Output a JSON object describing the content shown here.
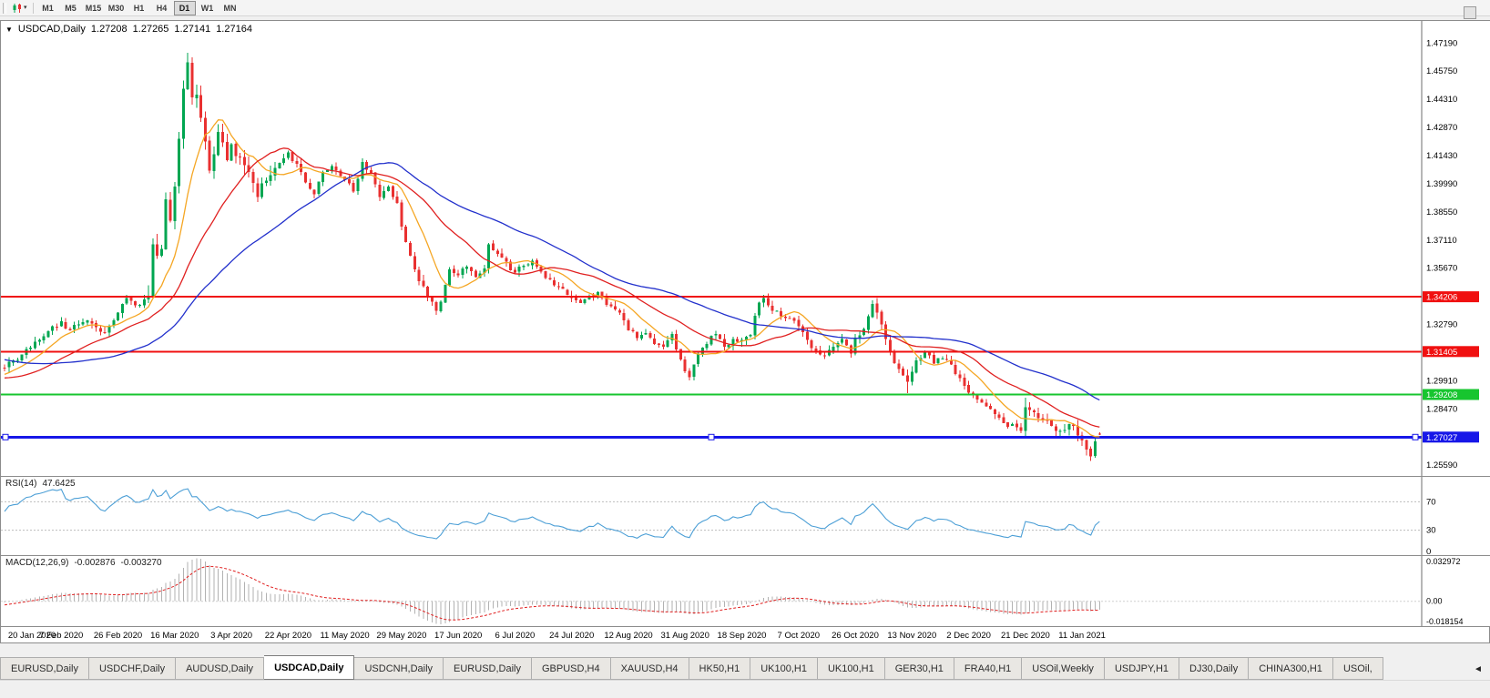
{
  "icons": {
    "collapse_triangle": "▼",
    "dropdown_caret": "▾",
    "tab_scroll_left": "◄"
  },
  "toolbar": {
    "timeframes": [
      {
        "label": "M1",
        "active": false
      },
      {
        "label": "M5",
        "active": false
      },
      {
        "label": "M15",
        "active": false
      },
      {
        "label": "M30",
        "active": false
      },
      {
        "label": "H1",
        "active": false
      },
      {
        "label": "H4",
        "active": false
      },
      {
        "label": "D1",
        "active": true
      },
      {
        "label": "W1",
        "active": false
      },
      {
        "label": "MN",
        "active": false
      }
    ]
  },
  "chart": {
    "title": "USDCAD,Daily",
    "open": "1.27208",
    "high": "1.27265",
    "low": "1.27141",
    "close": "1.27164",
    "price_axis": [
      "1.47190",
      "1.45750",
      "1.44310",
      "1.42870",
      "1.41430",
      "1.39990",
      "1.38550",
      "1.37110",
      "1.35670",
      "1.34230",
      "1.32790",
      "1.31350",
      "1.29910",
      "1.28470",
      "1.27030",
      "1.25590"
    ],
    "date_axis": [
      "20 Jan 2020",
      "7 Feb 2020",
      "26 Feb 2020",
      "16 Mar 2020",
      "3 Apr 2020",
      "22 Apr 2020",
      "11 May 2020",
      "29 May 2020",
      "17 Jun 2020",
      "6 Jul 2020",
      "24 Jul 2020",
      "12 Aug 2020",
      "31 Aug 2020",
      "18 Sep 2020",
      "7 Oct 2020",
      "26 Oct 2020",
      "13 Nov 2020",
      "2 Dec 2020",
      "21 Dec 2020",
      "11 Jan 2021"
    ],
    "hlines": [
      {
        "price": 1.34206,
        "label": "1.34206",
        "color": "#F01010",
        "width": 2,
        "handles": false
      },
      {
        "price": 1.31405,
        "label": "1.31405",
        "color": "#F01010",
        "width": 2,
        "handles": false
      },
      {
        "price": 1.29208,
        "label": "1.29208",
        "color": "#17C52F",
        "width": 2,
        "handles": false
      },
      {
        "price": 1.27027,
        "label": "1.27027",
        "color": "#1717E8",
        "width": 3,
        "handles": true
      }
    ]
  },
  "rsi": {
    "name": "RSI(14)",
    "value": "47.6425",
    "color": "#4C9FD6",
    "levels": [
      {
        "value": 70,
        "label": "70",
        "dashed": true
      },
      {
        "value": 30,
        "label": "30",
        "dashed": true
      },
      {
        "value": 0,
        "label": "0",
        "dashed": false
      }
    ]
  },
  "macd": {
    "name": "MACD(12,26,9)",
    "value_main": "-0.002876",
    "value_signal": "-0.003270",
    "axis_max": "0.032972",
    "axis_zero": "0.00",
    "axis_min": "-0.018154",
    "histogram_color": "#b2b2b2",
    "signal_color": "#E02020"
  },
  "tabs": {
    "active_index": 3,
    "items": [
      "EURUSD,Daily",
      "USDCHF,Daily",
      "AUDUSD,Daily",
      "USDCAD,Daily",
      "USDCNH,Daily",
      "EURUSD,Daily",
      "GBPUSD,H4",
      "XAUUSD,H4",
      "HK50,H1",
      "UK100,H1",
      "UK100,H1",
      "GER30,H1",
      "FRA40,H1",
      "USOil,Weekly",
      "USDJPY,H1",
      "DJ30,Daily",
      "CHINA300,H1",
      "USOil,"
    ]
  },
  "chart_data": {
    "type": "candlestick",
    "symbol": "USDCAD",
    "timeframe": "Daily",
    "title": "USDCAD,Daily",
    "bar_count": 252,
    "seed": 11,
    "noise": 0.0016,
    "price_max": 1.4832,
    "price_min": 1.2504,
    "bull_color": "#00A651",
    "bear_color": "#E93030",
    "last_ohlc": [
      1.27208,
      1.27265,
      1.27141,
      1.27164
    ],
    "extremes": [
      [
        42,
        "h",
        1.4669
      ],
      [
        157,
        "l",
        1.2994
      ],
      [
        207,
        "l",
        1.2928
      ],
      [
        234,
        "h",
        1.2905
      ],
      [
        249,
        "l",
        1.2589
      ]
    ],
    "moving_averages": [
      {
        "period": 10,
        "color": "#F5A623"
      },
      {
        "period": 25,
        "color": "#E02020"
      },
      {
        "period": 50,
        "color": "#2230CC"
      }
    ],
    "rsi_period": 14,
    "macd_params": [
      12,
      26,
      9
    ],
    "support_resistance_levels": [
      1.34206,
      1.31405,
      1.29208,
      1.27027
    ],
    "anchors": [
      [
        -50,
        1.329
      ],
      [
        -44,
        1.3255
      ],
      [
        -38,
        1.321
      ],
      [
        -32,
        1.3155
      ],
      [
        -26,
        1.3085
      ],
      [
        -20,
        1.3
      ],
      [
        -15,
        1.2965
      ],
      [
        -10,
        1.2975
      ],
      [
        -6,
        1.301
      ],
      [
        -3,
        1.304
      ],
      [
        0,
        1.3058
      ],
      [
        2,
        1.3095
      ],
      [
        4,
        1.3125
      ],
      [
        6,
        1.316
      ],
      [
        8,
        1.32
      ],
      [
        10,
        1.3245
      ],
      [
        11,
        1.327
      ],
      [
        13,
        1.3295
      ],
      [
        15,
        1.325
      ],
      [
        17,
        1.328
      ],
      [
        19,
        1.33
      ],
      [
        21,
        1.3265
      ],
      [
        23,
        1.3235
      ],
      [
        25,
        1.33
      ],
      [
        26,
        1.334
      ],
      [
        28,
        1.3415
      ],
      [
        29,
        1.34
      ],
      [
        31,
        1.338
      ],
      [
        33,
        1.3425
      ],
      [
        34,
        1.369
      ],
      [
        35,
        1.363
      ],
      [
        36,
        1.3665
      ],
      [
        37,
        1.392
      ],
      [
        38,
        1.381
      ],
      [
        39,
        1.3985
      ],
      [
        40,
        1.423
      ],
      [
        41,
        1.4485
      ],
      [
        42,
        1.462
      ],
      [
        43,
        1.444
      ],
      [
        44,
        1.4455
      ],
      [
        45,
        1.4335
      ],
      [
        46,
        1.4215
      ],
      [
        47,
        1.4065
      ],
      [
        48,
        1.415
      ],
      [
        49,
        1.4265
      ],
      [
        50,
        1.421
      ],
      [
        51,
        1.412
      ],
      [
        52,
        1.42
      ],
      [
        54,
        1.4135
      ],
      [
        56,
        1.406
      ],
      [
        58,
        1.393
      ],
      [
        60,
        1.4015
      ],
      [
        62,
        1.408
      ],
      [
        65,
        1.416
      ],
      [
        67,
        1.41
      ],
      [
        69,
        1.4005
      ],
      [
        71,
        1.3945
      ],
      [
        73,
        1.406
      ],
      [
        75,
        1.409
      ],
      [
        78,
        1.402
      ],
      [
        80,
        1.396
      ],
      [
        82,
        1.411
      ],
      [
        84,
        1.4055
      ],
      [
        86,
        1.393
      ],
      [
        88,
        1.3985
      ],
      [
        90,
        1.39
      ],
      [
        91,
        1.378
      ],
      [
        93,
        1.363
      ],
      [
        95,
        1.35
      ],
      [
        97,
        1.342
      ],
      [
        99,
        1.335
      ],
      [
        100,
        1.3395
      ],
      [
        102,
        1.356
      ],
      [
        104,
        1.353
      ],
      [
        106,
        1.3575
      ],
      [
        108,
        1.352
      ],
      [
        110,
        1.3565
      ],
      [
        111,
        1.369
      ],
      [
        113,
        1.364
      ],
      [
        115,
        1.36
      ],
      [
        117,
        1.3545
      ],
      [
        119,
        1.358
      ],
      [
        121,
        1.3605
      ],
      [
        123,
        1.355
      ],
      [
        125,
        1.351
      ],
      [
        127,
        1.3475
      ],
      [
        129,
        1.343
      ],
      [
        130,
        1.3415
      ],
      [
        132,
        1.339
      ],
      [
        134,
        1.3425
      ],
      [
        136,
        1.3445
      ],
      [
        138,
        1.338
      ],
      [
        140,
        1.3355
      ],
      [
        142,
        1.33
      ],
      [
        143,
        1.325
      ],
      [
        145,
        1.321
      ],
      [
        147,
        1.3235
      ],
      [
        149,
        1.318
      ],
      [
        151,
        1.3165
      ],
      [
        153,
        1.323
      ],
      [
        155,
        1.31
      ],
      [
        156,
        1.304
      ],
      [
        157,
        1.301
      ],
      [
        159,
        1.313
      ],
      [
        161,
        1.318
      ],
      [
        163,
        1.323
      ],
      [
        165,
        1.3165
      ],
      [
        167,
        1.3205
      ],
      [
        169,
        1.32
      ],
      [
        171,
        1.3225
      ],
      [
        173,
        1.339
      ],
      [
        174,
        1.3415
      ],
      [
        176,
        1.335
      ],
      [
        178,
        1.332
      ],
      [
        180,
        1.331
      ],
      [
        182,
        1.327
      ],
      [
        184,
        1.32
      ],
      [
        186,
        1.3145
      ],
      [
        188,
        1.312
      ],
      [
        190,
        1.3165
      ],
      [
        192,
        1.3205
      ],
      [
        194,
        1.313
      ],
      [
        195,
        1.321
      ],
      [
        197,
        1.3255
      ],
      [
        198,
        1.332
      ],
      [
        199,
        1.3385
      ],
      [
        201,
        1.328
      ],
      [
        203,
        1.314
      ],
      [
        205,
        1.305
      ],
      [
        207,
        1.2985
      ],
      [
        209,
        1.3095
      ],
      [
        211,
        1.314
      ],
      [
        213,
        1.308
      ],
      [
        215,
        1.3105
      ],
      [
        217,
        1.3075
      ],
      [
        219,
        1.3005
      ],
      [
        221,
        1.293
      ],
      [
        223,
        1.2895
      ],
      [
        225,
        1.286
      ],
      [
        227,
        1.282
      ],
      [
        229,
        1.2775
      ],
      [
        231,
        1.277
      ],
      [
        233,
        1.2735
      ],
      [
        234,
        1.2855
      ],
      [
        236,
        1.283
      ],
      [
        238,
        1.279
      ],
      [
        240,
        1.276
      ],
      [
        242,
        1.2735
      ],
      [
        244,
        1.277
      ],
      [
        245,
        1.276
      ],
      [
        246,
        1.271
      ],
      [
        247,
        1.2685
      ],
      [
        248,
        1.264
      ],
      [
        249,
        1.2605
      ],
      [
        250,
        1.268
      ],
      [
        251,
        1.27164
      ]
    ]
  }
}
